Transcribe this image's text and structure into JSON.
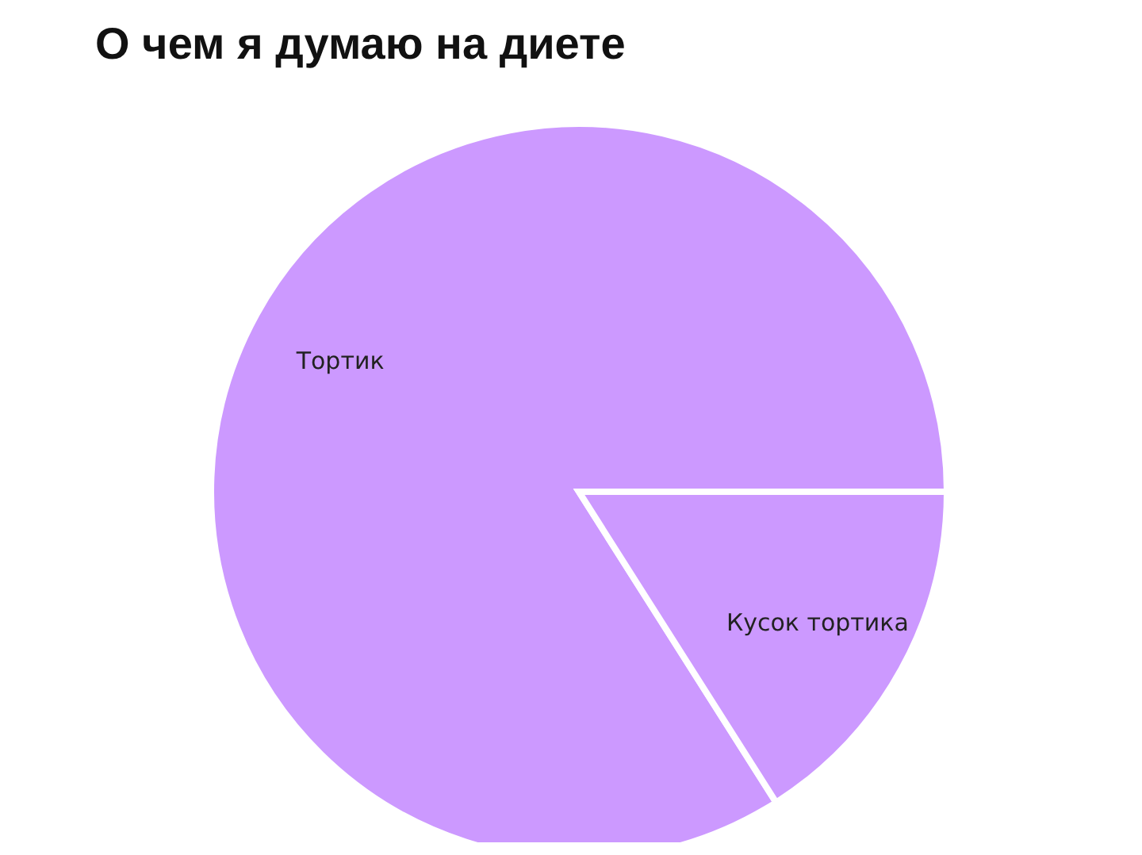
{
  "chart_data": {
    "type": "pie",
    "title": "О чем я думаю на диете",
    "categories": [
      "Тортик",
      "Кусок тортика"
    ],
    "values": [
      84,
      16
    ],
    "colors": [
      "#cc99ff",
      "#cc99ff"
    ],
    "legend": false
  }
}
